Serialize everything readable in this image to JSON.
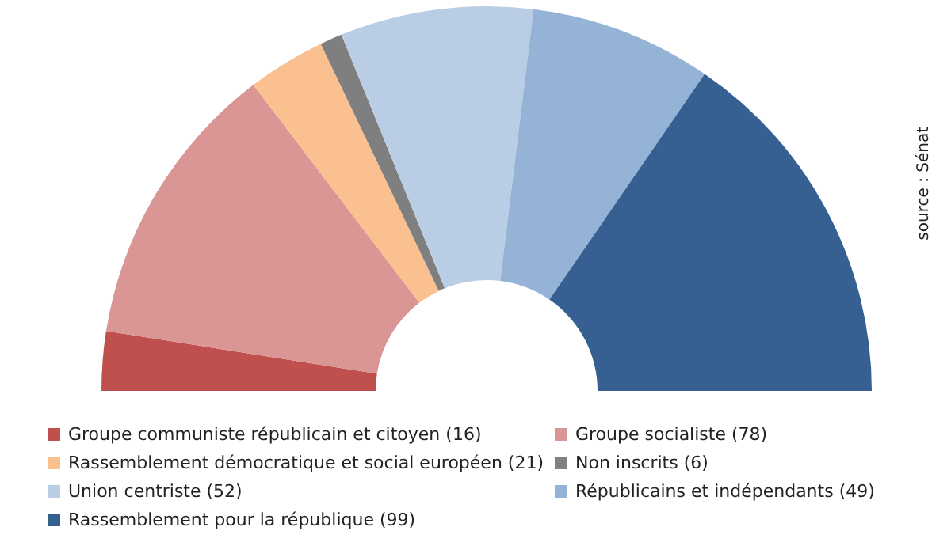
{
  "chart_data": {
    "type": "donut",
    "categories": [
      "Groupe communiste républicain et citoyen (16)",
      "Groupe socialiste (78)",
      "Rassemblement démocratique et social européen (21)",
      "Non inscrits (6)",
      "Union centriste (52)",
      "Républicains et indépendants (49)",
      "Rassemblement pour la république (99)"
    ],
    "values": [
      16,
      78,
      21,
      6,
      52,
      49,
      99
    ],
    "colors": [
      "#c0504d",
      "#d99694",
      "#fac08f",
      "#7f7f7f",
      "#b9cde5",
      "#95b3d7",
      "#366092"
    ],
    "legend": "bottom",
    "annotations": [
      "source : Sénat"
    ]
  }
}
